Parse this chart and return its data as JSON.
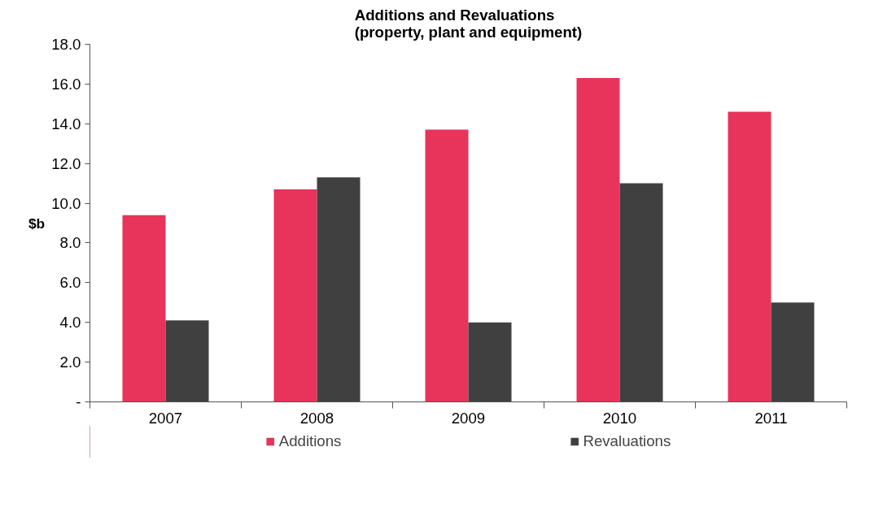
{
  "chart_data": {
    "type": "bar",
    "title": "Additions and Revaluations\n(property, plant and equipment)",
    "ylabel": "$b",
    "categories": [
      "2007",
      "2008",
      "2009",
      "2010",
      "2011"
    ],
    "series": [
      {
        "name": "Additions",
        "color": "#e8335a",
        "values": [
          9.4,
          10.7,
          13.7,
          16.3,
          14.6
        ]
      },
      {
        "name": "Revaluations",
        "color": "#404040",
        "values": [
          4.1,
          11.3,
          4.0,
          11.0,
          5.0
        ]
      }
    ],
    "ylim": [
      0,
      18
    ],
    "yticks": [
      {
        "value": 0,
        "label": "-"
      },
      {
        "value": 2,
        "label": "2.0"
      },
      {
        "value": 4,
        "label": "4.0"
      },
      {
        "value": 6,
        "label": "6.0"
      },
      {
        "value": 8,
        "label": "8.0"
      },
      {
        "value": 10,
        "label": "10.0"
      },
      {
        "value": 12,
        "label": "12.0"
      },
      {
        "value": 14,
        "label": "14.0"
      },
      {
        "value": 16,
        "label": "16.0"
      },
      {
        "value": 18,
        "label": "18.0"
      }
    ],
    "grid": false,
    "legend": "bottom"
  }
}
